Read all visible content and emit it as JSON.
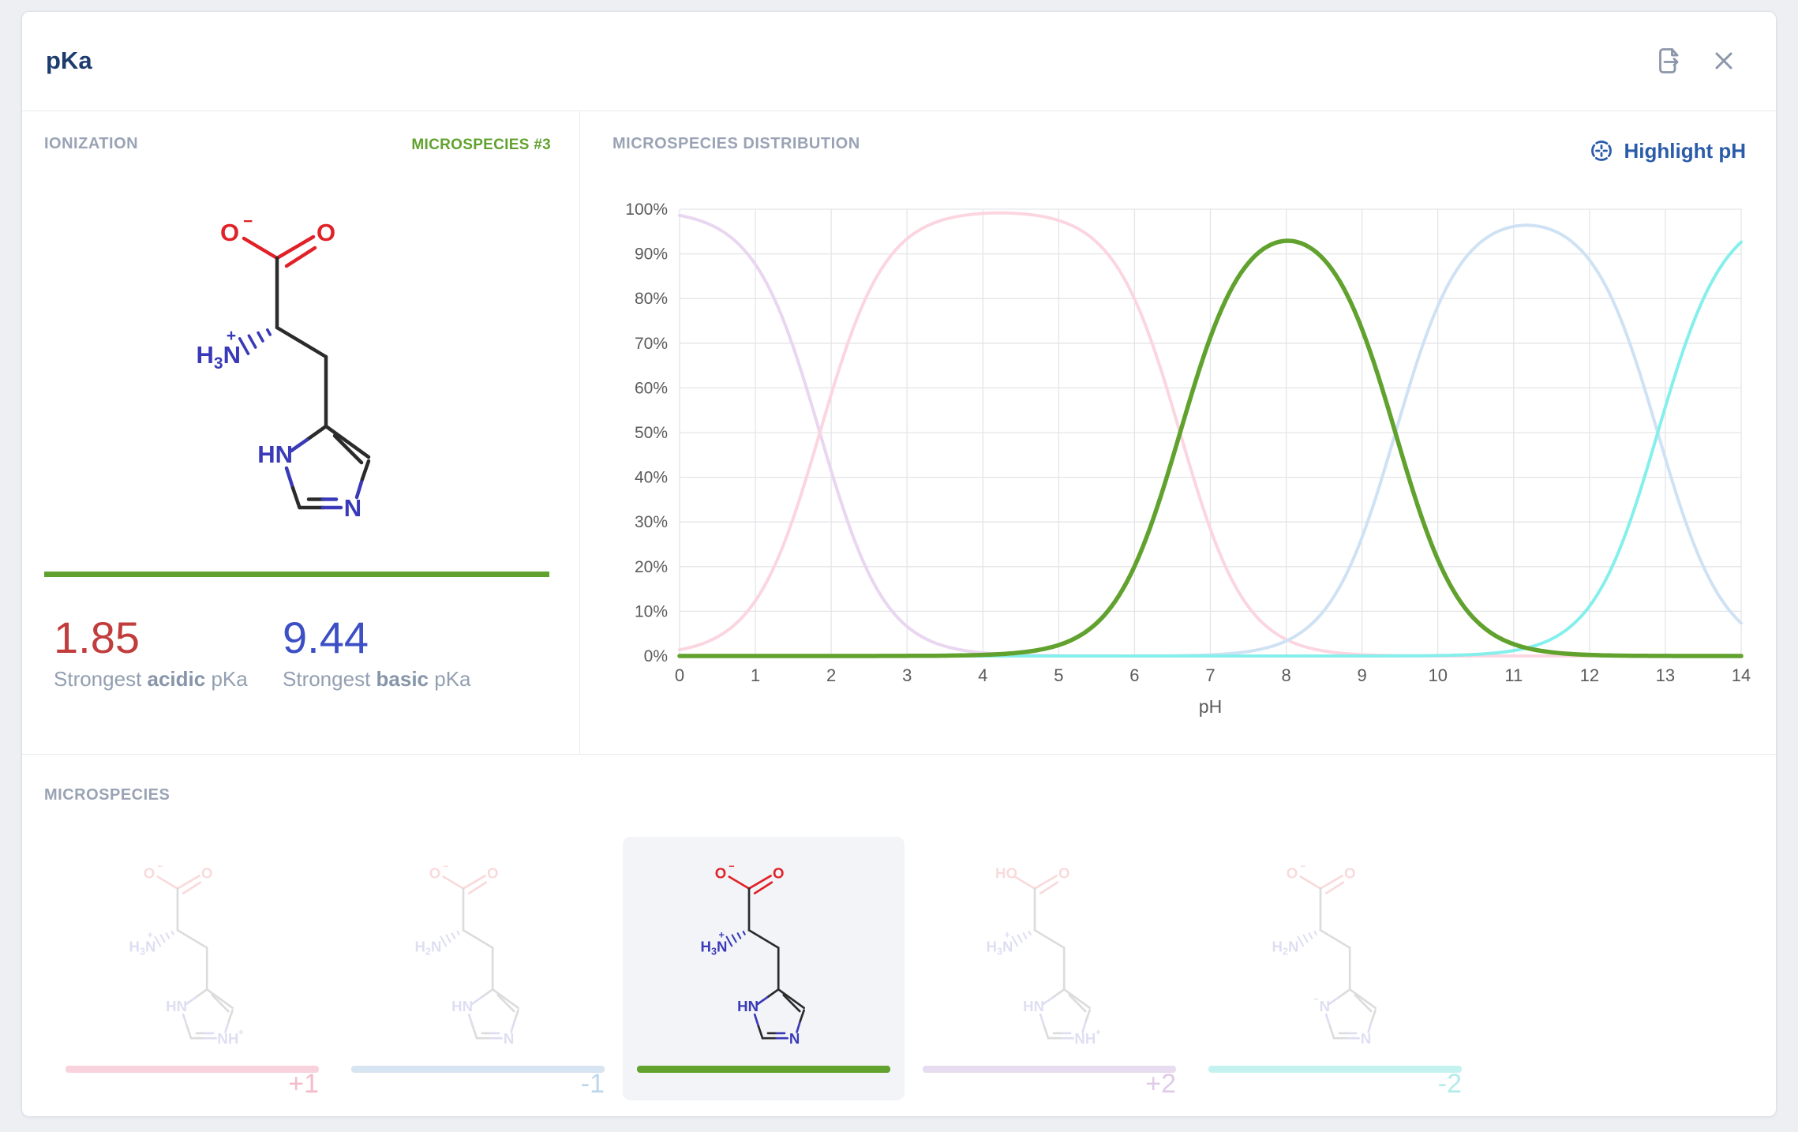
{
  "header": {
    "title": "pKa",
    "actions": [
      "export",
      "close"
    ]
  },
  "colors": {
    "title_navy": "#1d3c6e",
    "section_gray": "#9aa3b5",
    "accent_green": "#61a22e",
    "acidic_red": "#c13c3c",
    "basic_blue": "#3c4fc5",
    "highlight_blue": "#2a5caa",
    "icon_gray": "#8b96aa",
    "molecule": {
      "carbon": "#2b2b2b",
      "oxygen": "#e02228",
      "nitrogen": "#3a3ab8"
    }
  },
  "ionization": {
    "section_title": "IONIZATION",
    "badge": "MICROSPECIES #3",
    "acidic": {
      "value": "1.85",
      "prefix": "Strongest ",
      "bold": "acidic",
      "suffix": " pKa"
    },
    "basic": {
      "value": "9.44",
      "prefix": "Strongest ",
      "bold": "basic",
      "suffix": " pKa"
    }
  },
  "distribution": {
    "section_title": "MICROSPECIES DISTRIBUTION",
    "highlight_button": "Highlight pH"
  },
  "chart_data": {
    "type": "line",
    "title": "MICROSPECIES DISTRIBUTION",
    "xlabel": "pH",
    "ylabel": "",
    "xlim": [
      0,
      14
    ],
    "ylim": [
      0,
      100
    ],
    "x_ticks": [
      0,
      1,
      2,
      3,
      4,
      5,
      6,
      7,
      8,
      9,
      10,
      11,
      12,
      13,
      14
    ],
    "y_tick_labels": [
      "0%",
      "10%",
      "20%",
      "30%",
      "40%",
      "50%",
      "60%",
      "70%",
      "80%",
      "90%",
      "100%"
    ],
    "grid": true,
    "model": "henderson-hasselbalch distribution of 5 protonation states",
    "pkas": [
      1.85,
      6.6,
      9.44,
      12.9
    ],
    "series": [
      {
        "name": "+2 microspecies",
        "charge": 2,
        "color": "#e9d6f0",
        "width": 4,
        "description": "~99% at pH 0, sigmoid fall centered at pKa 1.85"
      },
      {
        "name": "+1 microspecies",
        "charge": 1,
        "color": "#fbd6e0",
        "width": 4,
        "description": "peak ~99% at pH 4.2, rises at 1.85, falls at 6.6"
      },
      {
        "name": "0 microspecies (selected)",
        "charge": 0,
        "color": "#61a22e",
        "width": 5.5,
        "selected": true,
        "description": "peak ~93% at pH 8.0, rises at 6.6, falls at 9.44"
      },
      {
        "name": "-1 microspecies",
        "charge": -1,
        "color": "#cfe2f4",
        "width": 4,
        "description": "peak ~96% at pH 11.2, rises at 9.44, falls at 12.9"
      },
      {
        "name": "-2 microspecies",
        "charge": -2,
        "color": "#85efec",
        "width": 4,
        "description": "rises at 12.9 to ~93% at pH 14"
      }
    ]
  },
  "microspecies_panel": {
    "section_title": "MICROSPECIES",
    "selected_index": 2,
    "items": [
      {
        "charge": "+1",
        "accent": "#f4bcca",
        "bar": "#f8d2dc",
        "selected": false,
        "molecule": {
          "carboxyl": {
            "label": "O",
            "sup": "−"
          },
          "carbonyl": "O",
          "amine": {
            "h": "H",
            "sub": "3",
            "n": "N",
            "sup": "+"
          },
          "ring_left": {
            "label": "HN",
            "sup": ""
          },
          "ring_right": {
            "label": "NH",
            "sup": "+"
          }
        }
      },
      {
        "charge": "-1",
        "accent": "#bdd7ec",
        "bar": "#d7e4f2",
        "selected": false,
        "molecule": {
          "carboxyl": {
            "label": "O",
            "sup": "−"
          },
          "carbonyl": "O",
          "amine": {
            "h": "H",
            "sub": "2",
            "n": "N",
            "sup": ""
          },
          "ring_left": {
            "label": "HN",
            "sup": ""
          },
          "ring_right": {
            "label": "N",
            "sup": ""
          }
        }
      },
      {
        "charge": "",
        "accent": "#61a22e",
        "bar": "#61a22e",
        "selected": true,
        "molecule": {
          "carboxyl": {
            "label": "O",
            "sup": "−"
          },
          "carbonyl": "O",
          "amine": {
            "h": "H",
            "sub": "3",
            "n": "N",
            "sup": "+"
          },
          "ring_left": {
            "label": "HN",
            "sup": ""
          },
          "ring_right": {
            "label": "N",
            "sup": ""
          }
        }
      },
      {
        "charge": "+2",
        "accent": "#dfcce9",
        "bar": "#e8dcf0",
        "selected": false,
        "molecule": {
          "carboxyl": {
            "label": "HO",
            "sup": ""
          },
          "carbonyl": "O",
          "amine": {
            "h": "H",
            "sub": "3",
            "n": "N",
            "sup": "+"
          },
          "ring_left": {
            "label": "HN",
            "sup": ""
          },
          "ring_right": {
            "label": "NH",
            "sup": "+"
          }
        }
      },
      {
        "charge": "-2",
        "accent": "#b2ece9",
        "bar": "#c4f2f0",
        "selected": false,
        "molecule": {
          "carboxyl": {
            "label": "O",
            "sup": "−"
          },
          "carbonyl": "O",
          "amine": {
            "h": "H",
            "sub": "2",
            "n": "N",
            "sup": ""
          },
          "ring_left": {
            "label": "N",
            "sup": "−"
          },
          "ring_right": {
            "label": "N",
            "sup": ""
          }
        }
      }
    ]
  }
}
